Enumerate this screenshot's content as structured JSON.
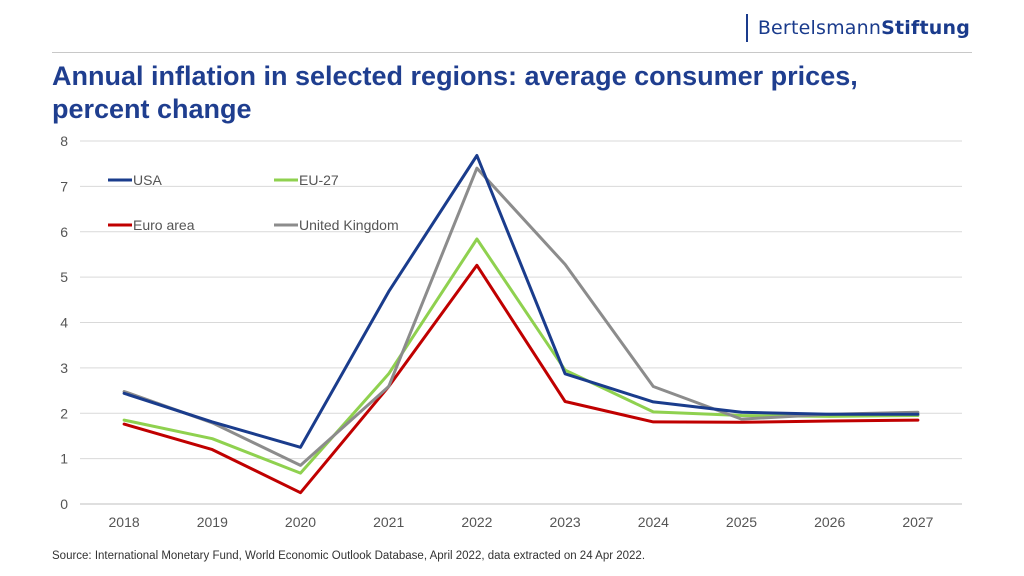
{
  "brand": {
    "part1": "Bertelsmann",
    "part2": "Stiftung"
  },
  "source": "Source: International  Monetary Fund, World Economic Outlook  Database, April 2022, data extracted on 24 Apr 2022.",
  "colors": {
    "usa": "#1a3c8c",
    "eu27": "#8fd14f",
    "euro": "#c00000",
    "uk": "#8c8c8c",
    "grid": "#d9d9d9",
    "title": "#1f3e8f"
  },
  "chart_data": {
    "type": "line",
    "title": "Annual inflation in selected regions: average consumer prices, percent change",
    "xlabel": "",
    "ylabel": "",
    "ylim": [
      0,
      8
    ],
    "yticks": [
      0,
      1,
      2,
      3,
      4,
      5,
      6,
      7,
      8
    ],
    "grid": true,
    "legend_position": "top-left",
    "categories": [
      "2018",
      "2019",
      "2020",
      "2021",
      "2022",
      "2023",
      "2024",
      "2025",
      "2026",
      "2027"
    ],
    "series": [
      {
        "name": "USA",
        "color": "#1a3c8c",
        "values": [
          2.44,
          1.81,
          1.25,
          4.68,
          7.68,
          2.87,
          2.25,
          2.02,
          1.98,
          1.98
        ]
      },
      {
        "name": "EU-27",
        "color": "#8fd14f",
        "values": [
          1.85,
          1.44,
          0.68,
          2.87,
          5.84,
          2.95,
          2.03,
          1.95,
          1.93,
          1.95
        ]
      },
      {
        "name": "Euro area",
        "color": "#c00000",
        "values": [
          1.76,
          1.2,
          0.25,
          2.59,
          5.26,
          2.26,
          1.81,
          1.8,
          1.83,
          1.85
        ]
      },
      {
        "name": "United Kingdom",
        "color": "#8c8c8c",
        "values": [
          2.48,
          1.79,
          0.85,
          2.59,
          7.4,
          5.28,
          2.59,
          1.87,
          1.98,
          2.02
        ]
      }
    ]
  }
}
